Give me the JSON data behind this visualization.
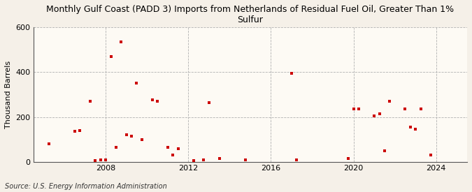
{
  "title": "Monthly Gulf Coast (PADD 3) Imports from Netherlands of Residual Fuel Oil, Greater Than 1%\nSulfur",
  "ylabel": "Thousand Barrels",
  "source": "Source: U.S. Energy Information Administration",
  "background_color": "#f5f0e8",
  "plot_bg_color": "#fdfaf4",
  "marker_color": "#cc0000",
  "xlim": [
    2004.5,
    2025.5
  ],
  "ylim": [
    0,
    600
  ],
  "yticks": [
    0,
    200,
    400,
    600
  ],
  "xticks": [
    2008,
    2012,
    2016,
    2020,
    2024
  ],
  "data_points": [
    [
      2005.25,
      80
    ],
    [
      2006.5,
      135
    ],
    [
      2006.75,
      140
    ],
    [
      2007.25,
      270
    ],
    [
      2007.5,
      5
    ],
    [
      2007.75,
      8
    ],
    [
      2008.0,
      10
    ],
    [
      2008.25,
      470
    ],
    [
      2008.5,
      65
    ],
    [
      2008.75,
      535
    ],
    [
      2009.0,
      120
    ],
    [
      2009.25,
      115
    ],
    [
      2009.5,
      350
    ],
    [
      2009.75,
      100
    ],
    [
      2010.25,
      275
    ],
    [
      2010.5,
      270
    ],
    [
      2011.0,
      65
    ],
    [
      2011.25,
      30
    ],
    [
      2011.5,
      60
    ],
    [
      2012.25,
      5
    ],
    [
      2012.75,
      10
    ],
    [
      2013.0,
      265
    ],
    [
      2013.5,
      15
    ],
    [
      2014.75,
      10
    ],
    [
      2017.0,
      395
    ],
    [
      2017.25,
      10
    ],
    [
      2019.75,
      15
    ],
    [
      2020.0,
      235
    ],
    [
      2020.25,
      235
    ],
    [
      2021.0,
      205
    ],
    [
      2021.25,
      215
    ],
    [
      2021.5,
      50
    ],
    [
      2021.75,
      270
    ],
    [
      2022.5,
      235
    ],
    [
      2022.75,
      155
    ],
    [
      2023.0,
      145
    ],
    [
      2023.25,
      235
    ],
    [
      2023.75,
      30
    ]
  ]
}
